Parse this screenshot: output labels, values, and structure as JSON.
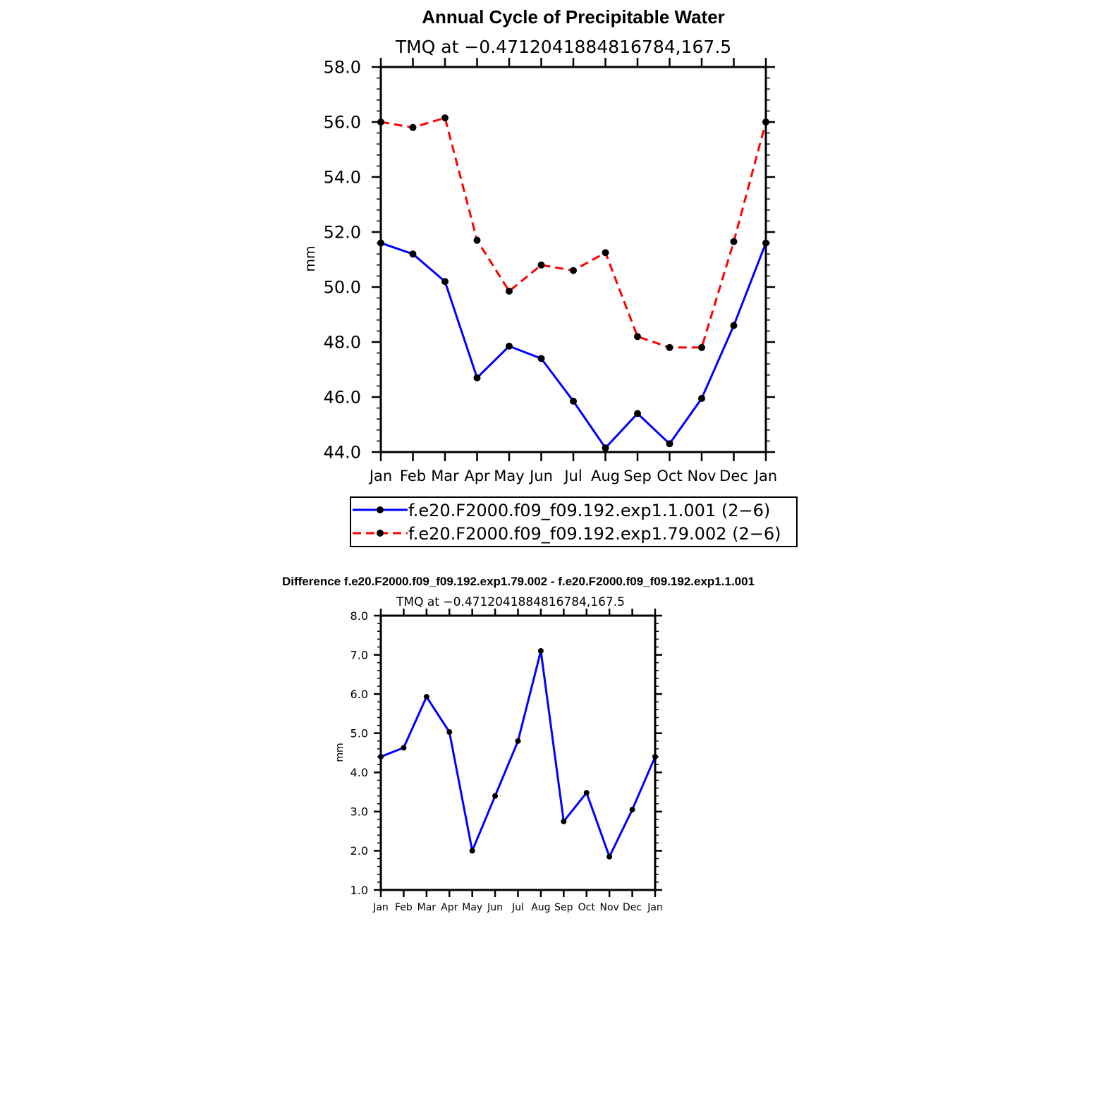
{
  "chart_data": [
    {
      "type": "line",
      "title": "Annual Cycle of Precipitable Water",
      "subtitle": "TMQ at −0.4712041884816784,167.5",
      "xlabel": "",
      "ylabel": "mm",
      "categories": [
        "Jan",
        "Feb",
        "Mar",
        "Apr",
        "May",
        "Jun",
        "Jul",
        "Aug",
        "Sep",
        "Oct",
        "Nov",
        "Dec",
        "Jan"
      ],
      "ylim": [
        44.0,
        58.0
      ],
      "yticks": [
        "44.0",
        "46.0",
        "48.0",
        "50.0",
        "52.0",
        "54.0",
        "56.0",
        "58.0"
      ],
      "grid": false,
      "legend_position": "bottom",
      "series": [
        {
          "name": "f.e20.F2000.f09_f09.192.exp1.1.001 (2−6)",
          "color": "#0000ff",
          "line_style": "solid",
          "marker": "dot",
          "values": [
            51.6,
            51.2,
            50.2,
            46.7,
            47.85,
            47.4,
            45.85,
            44.15,
            45.4,
            44.3,
            45.95,
            48.6,
            51.6
          ]
        },
        {
          "name": "f.e20.F2000.f09_f09.192.exp1.79.002 (2−6)",
          "color": "#ff0000",
          "line_style": "dashed",
          "marker": "dot",
          "values": [
            56.0,
            55.8,
            56.15,
            51.7,
            49.85,
            50.8,
            50.6,
            51.25,
            48.2,
            47.8,
            47.8,
            51.65,
            56.0
          ]
        }
      ]
    },
    {
      "type": "line",
      "title": "Difference f.e20.F2000.f09_f09.192.exp1.79.002 - f.e20.F2000.f09_f09.192.exp1.1.001",
      "subtitle": "TMQ at −0.4712041884816784,167.5",
      "xlabel": "",
      "ylabel": "mm",
      "categories": [
        "Jan",
        "Feb",
        "Mar",
        "Apr",
        "May",
        "Jun",
        "Jul",
        "Aug",
        "Sep",
        "Oct",
        "Nov",
        "Dec",
        "Jan"
      ],
      "ylim": [
        1.0,
        8.0
      ],
      "yticks": [
        "1.0",
        "2.0",
        "3.0",
        "4.0",
        "5.0",
        "6.0",
        "7.0",
        "8.0"
      ],
      "grid": false,
      "series": [
        {
          "color": "#0000ff",
          "line_style": "solid",
          "marker": "dot",
          "values": [
            4.4,
            4.63,
            5.93,
            5.03,
            2.0,
            3.4,
            4.8,
            7.1,
            2.75,
            3.48,
            1.85,
            3.05,
            4.4
          ]
        }
      ]
    }
  ]
}
